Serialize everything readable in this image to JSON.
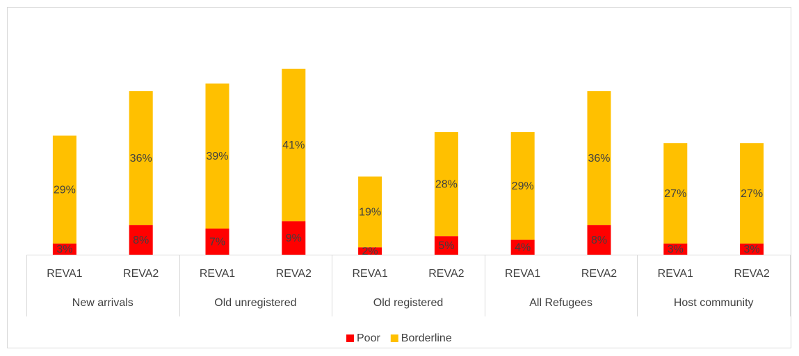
{
  "chart_data": {
    "type": "bar",
    "stacked": true,
    "categories": [
      "REVA1",
      "REVA2",
      "REVA1",
      "REVA2",
      "REVA1",
      "REVA2",
      "REVA1",
      "REVA2",
      "REVA1",
      "REVA2"
    ],
    "groups": [
      "New arrivals",
      "Old unregistered",
      "Old registered",
      "All Refugees",
      "Host community"
    ],
    "series": [
      {
        "name": "Poor",
        "color": "#ff0000",
        "values": [
          3,
          8,
          7,
          9,
          2,
          5,
          4,
          8,
          3,
          3
        ],
        "value_labels": [
          "3%",
          "8%",
          "7%",
          "9%",
          "2%",
          "5%",
          "4%",
          "8%",
          "3%",
          "3%"
        ]
      },
      {
        "name": "Borderline",
        "color": "#ffc000",
        "values": [
          29,
          36,
          39,
          41,
          19,
          28,
          29,
          36,
          27,
          27
        ],
        "value_labels": [
          "29%",
          "36%",
          "39%",
          "41%",
          "19%",
          "28%",
          "29%",
          "36%",
          "27%",
          "27%"
        ]
      }
    ],
    "legend": "bottom"
  }
}
